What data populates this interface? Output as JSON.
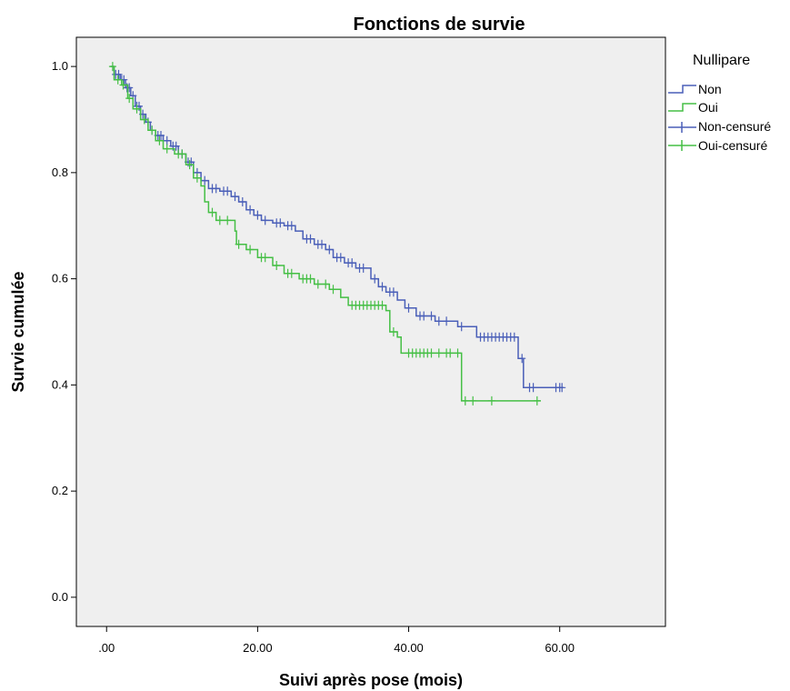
{
  "chart_data": {
    "type": "line",
    "title": "Fonctions de survie",
    "xlabel": "Suivi après pose (mois)",
    "ylabel": "Survie cumulée",
    "xlim": [
      -4,
      74
    ],
    "ylim": [
      -0.055,
      1.055
    ],
    "x_ticks": [
      0,
      20,
      40,
      60
    ],
    "x_tick_labels": [
      ".00",
      "20.00",
      "40.00",
      "60.00"
    ],
    "y_ticks": [
      0.0,
      0.2,
      0.4,
      0.6,
      0.8,
      1.0
    ],
    "y_tick_labels": [
      "0.0",
      "0.2",
      "0.4",
      "0.6",
      "0.8",
      "1.0"
    ],
    "grid": false,
    "legend": {
      "title": "Nullipare",
      "placement": "top-right",
      "entries": [
        "Non",
        "Oui",
        "Non-censuré",
        "Oui-censuré"
      ]
    },
    "colors": {
      "Non": "#4a5fb8",
      "Oui": "#45bf45",
      "plot_background": "#efefef"
    },
    "series": [
      {
        "name": "Non",
        "color": "#4a5fb8",
        "steps": [
          [
            0.5,
            1.0
          ],
          [
            1.0,
            0.985
          ],
          [
            1.8,
            0.975
          ],
          [
            2.5,
            0.96
          ],
          [
            3.2,
            0.945
          ],
          [
            3.8,
            0.925
          ],
          [
            4.5,
            0.91
          ],
          [
            5.2,
            0.895
          ],
          [
            5.8,
            0.88
          ],
          [
            6.5,
            0.87
          ],
          [
            7.5,
            0.86
          ],
          [
            8.5,
            0.85
          ],
          [
            9.5,
            0.835
          ],
          [
            10.5,
            0.82
          ],
          [
            11.5,
            0.8
          ],
          [
            12.5,
            0.785
          ],
          [
            13.5,
            0.77
          ],
          [
            15.0,
            0.765
          ],
          [
            16.5,
            0.755
          ],
          [
            17.5,
            0.745
          ],
          [
            18.5,
            0.73
          ],
          [
            19.5,
            0.72
          ],
          [
            20.5,
            0.71
          ],
          [
            22.0,
            0.705
          ],
          [
            23.5,
            0.7
          ],
          [
            25.0,
            0.69
          ],
          [
            26.0,
            0.675
          ],
          [
            27.5,
            0.665
          ],
          [
            29.0,
            0.655
          ],
          [
            30.0,
            0.64
          ],
          [
            31.5,
            0.63
          ],
          [
            33.0,
            0.62
          ],
          [
            35.0,
            0.6
          ],
          [
            36.0,
            0.585
          ],
          [
            37.0,
            0.575
          ],
          [
            38.5,
            0.56
          ],
          [
            39.5,
            0.545
          ],
          [
            41.0,
            0.53
          ],
          [
            43.5,
            0.52
          ],
          [
            46.5,
            0.51
          ],
          [
            49.0,
            0.49
          ],
          [
            54.5,
            0.45
          ],
          [
            55.2,
            0.395
          ],
          [
            60.5,
            0.395
          ]
        ],
        "censored": [
          1.2,
          1.6,
          2.0,
          2.3,
          2.7,
          3.0,
          3.5,
          4.0,
          4.3,
          4.8,
          5.5,
          6.0,
          6.8,
          7.2,
          8.0,
          8.8,
          9.2,
          10.0,
          10.8,
          11.2,
          12.0,
          13.0,
          14.0,
          14.5,
          15.5,
          16.0,
          17.0,
          18.0,
          19.0,
          20.0,
          21.0,
          22.5,
          23.0,
          24.0,
          24.5,
          26.5,
          27.0,
          28.0,
          28.5,
          29.5,
          30.5,
          31.0,
          32.0,
          32.5,
          33.5,
          34.0,
          35.5,
          36.5,
          37.5,
          38.0,
          40.0,
          41.5,
          42.0,
          43.0,
          44.0,
          45.0,
          47.0,
          49.5,
          50.0,
          50.5,
          51.0,
          51.5,
          52.0,
          52.5,
          53.0,
          53.5,
          54.0,
          55.0,
          56.0,
          56.5,
          59.5,
          60.0,
          60.3
        ]
      },
      {
        "name": "Oui",
        "color": "#45bf45",
        "steps": [
          [
            0.5,
            1.0
          ],
          [
            1.0,
            0.975
          ],
          [
            2.0,
            0.965
          ],
          [
            2.8,
            0.94
          ],
          [
            3.5,
            0.92
          ],
          [
            4.5,
            0.9
          ],
          [
            5.5,
            0.88
          ],
          [
            6.5,
            0.86
          ],
          [
            7.5,
            0.845
          ],
          [
            9.0,
            0.835
          ],
          [
            10.5,
            0.815
          ],
          [
            11.5,
            0.79
          ],
          [
            12.5,
            0.775
          ],
          [
            13.0,
            0.745
          ],
          [
            13.5,
            0.725
          ],
          [
            14.5,
            0.71
          ],
          [
            17.0,
            0.69
          ],
          [
            17.2,
            0.665
          ],
          [
            18.5,
            0.655
          ],
          [
            20.0,
            0.64
          ],
          [
            22.0,
            0.625
          ],
          [
            23.5,
            0.61
          ],
          [
            25.5,
            0.6
          ],
          [
            27.5,
            0.59
          ],
          [
            29.5,
            0.58
          ],
          [
            31.0,
            0.565
          ],
          [
            32.0,
            0.55
          ],
          [
            37.0,
            0.54
          ],
          [
            37.5,
            0.5
          ],
          [
            38.5,
            0.49
          ],
          [
            39.0,
            0.46
          ],
          [
            44.5,
            0.46
          ],
          [
            47.0,
            0.37
          ],
          [
            57.5,
            0.37
          ]
        ],
        "censored": [
          0.8,
          1.5,
          2.2,
          3.0,
          4.0,
          5.0,
          6.0,
          7.0,
          8.0,
          9.5,
          10.0,
          11.0,
          12.0,
          14.0,
          15.0,
          16.0,
          17.5,
          19.0,
          20.5,
          21.0,
          22.5,
          24.0,
          24.5,
          26.0,
          26.5,
          27.0,
          28.0,
          29.0,
          30.0,
          32.5,
          33.0,
          33.5,
          34.0,
          34.5,
          35.0,
          35.5,
          36.0,
          36.5,
          38.0,
          40.0,
          40.5,
          41.0,
          41.5,
          42.0,
          42.5,
          43.0,
          44.0,
          45.0,
          45.5,
          46.5,
          47.5,
          48.5,
          51.0,
          57.0
        ]
      }
    ]
  }
}
